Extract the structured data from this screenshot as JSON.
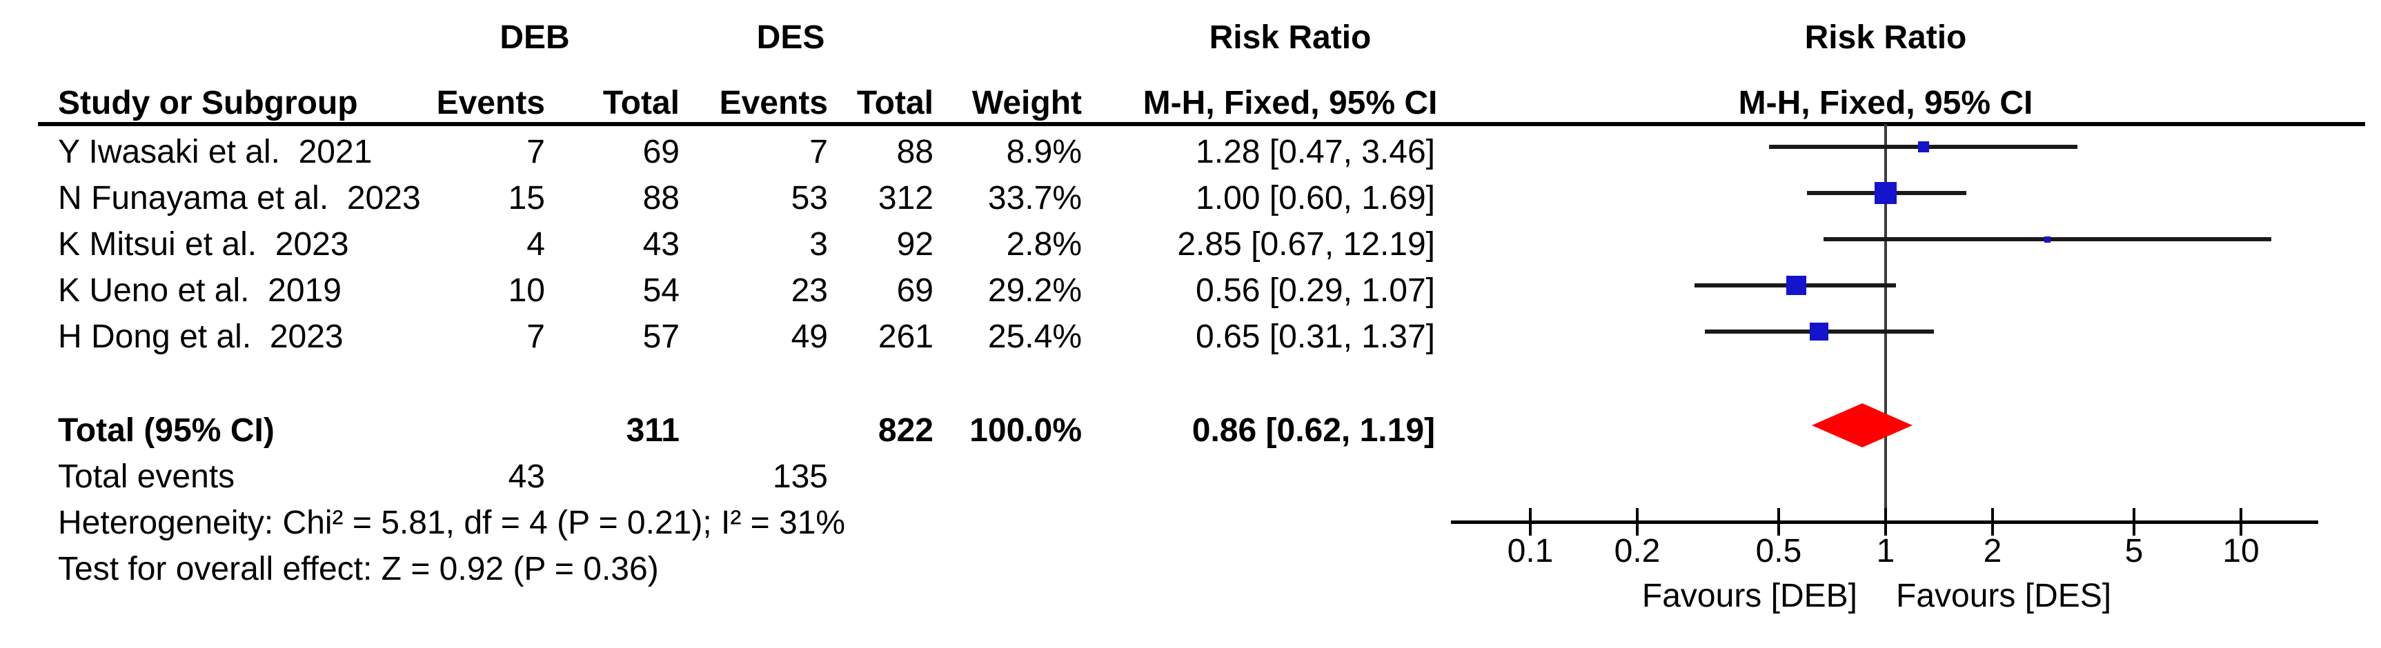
{
  "header": {
    "deb_group": "DEB",
    "des_group": "DES",
    "risk_ratio_left": "Risk Ratio",
    "risk_ratio_right": "Risk Ratio"
  },
  "columns": {
    "study": "Study or Subgroup",
    "events_deb": "Events",
    "total_deb": "Total",
    "events_des": "Events",
    "total_des": "Total",
    "weight": "Weight",
    "mh_left": "M-H, Fixed, 95% CI",
    "mh_right": "M-H, Fixed, 95% CI"
  },
  "chart_data": {
    "type": "forest",
    "effect_measure": "Risk Ratio",
    "method": "M-H, Fixed, 95% CI",
    "x_axis": {
      "scale": "log10",
      "ticks": [
        0.1,
        0.2,
        0.5,
        1,
        2,
        5,
        10
      ],
      "tick_labels": [
        "0.1",
        "0.2",
        "0.5",
        "1",
        "2",
        "5",
        "10"
      ],
      "favours_left": "Favours [DEB]",
      "favours_right": "Favours [DES]"
    },
    "studies": [
      {
        "label": "Y Iwasaki et al.  2021",
        "deb_events": "7",
        "deb_total": "69",
        "des_events": "7",
        "des_total": "88",
        "weight": "8.9%",
        "rr_text": "1.28 [0.47, 3.46]",
        "rr": 1.28,
        "ci_low": 0.47,
        "ci_high": 3.46,
        "weight_pct": 8.9
      },
      {
        "label": "N Funayama et al.  2023",
        "deb_events": "15",
        "deb_total": "88",
        "des_events": "53",
        "des_total": "312",
        "weight": "33.7%",
        "rr_text": "1.00 [0.60, 1.69]",
        "rr": 1.0,
        "ci_low": 0.6,
        "ci_high": 1.69,
        "weight_pct": 33.7
      },
      {
        "label": "K Mitsui et al.  2023",
        "deb_events": "4",
        "deb_total": "43",
        "des_events": "3",
        "des_total": "92",
        "weight": "2.8%",
        "rr_text": "2.85 [0.67, 12.19]",
        "rr": 2.85,
        "ci_low": 0.67,
        "ci_high": 12.19,
        "weight_pct": 2.8
      },
      {
        "label": "K Ueno et al.  2019",
        "deb_events": "10",
        "deb_total": "54",
        "des_events": "23",
        "des_total": "69",
        "weight": "29.2%",
        "rr_text": "0.56 [0.29, 1.07]",
        "rr": 0.56,
        "ci_low": 0.29,
        "ci_high": 1.07,
        "weight_pct": 29.2
      },
      {
        "label": "H Dong et al.  2023",
        "deb_events": "7",
        "deb_total": "57",
        "des_events": "49",
        "des_total": "261",
        "weight": "25.4%",
        "rr_text": "0.65 [0.31, 1.37]",
        "rr": 0.65,
        "ci_low": 0.31,
        "ci_high": 1.37,
        "weight_pct": 25.4
      }
    ],
    "total": {
      "label": "Total (95% CI)",
      "deb_total": "311",
      "des_total": "822",
      "weight": "100.0%",
      "rr_text": "0.86 [0.62, 1.19]",
      "rr": 0.86,
      "ci_low": 0.62,
      "ci_high": 1.19
    },
    "total_events": {
      "label": "Total events",
      "deb": "43",
      "des": "135"
    },
    "footnotes": {
      "heterogeneity": "Heterogeneity: Chi² = 5.81, df = 4 (P = 0.21); I² = 31%",
      "overall_effect": "Test for overall effect: Z = 0.92 (P = 0.36)"
    },
    "colors": {
      "square": "#1414CC",
      "diamond": "#FF0000",
      "ci_line": "#1A1A1A",
      "axis": "#000000",
      "center_line": "#3C3C3C"
    }
  }
}
